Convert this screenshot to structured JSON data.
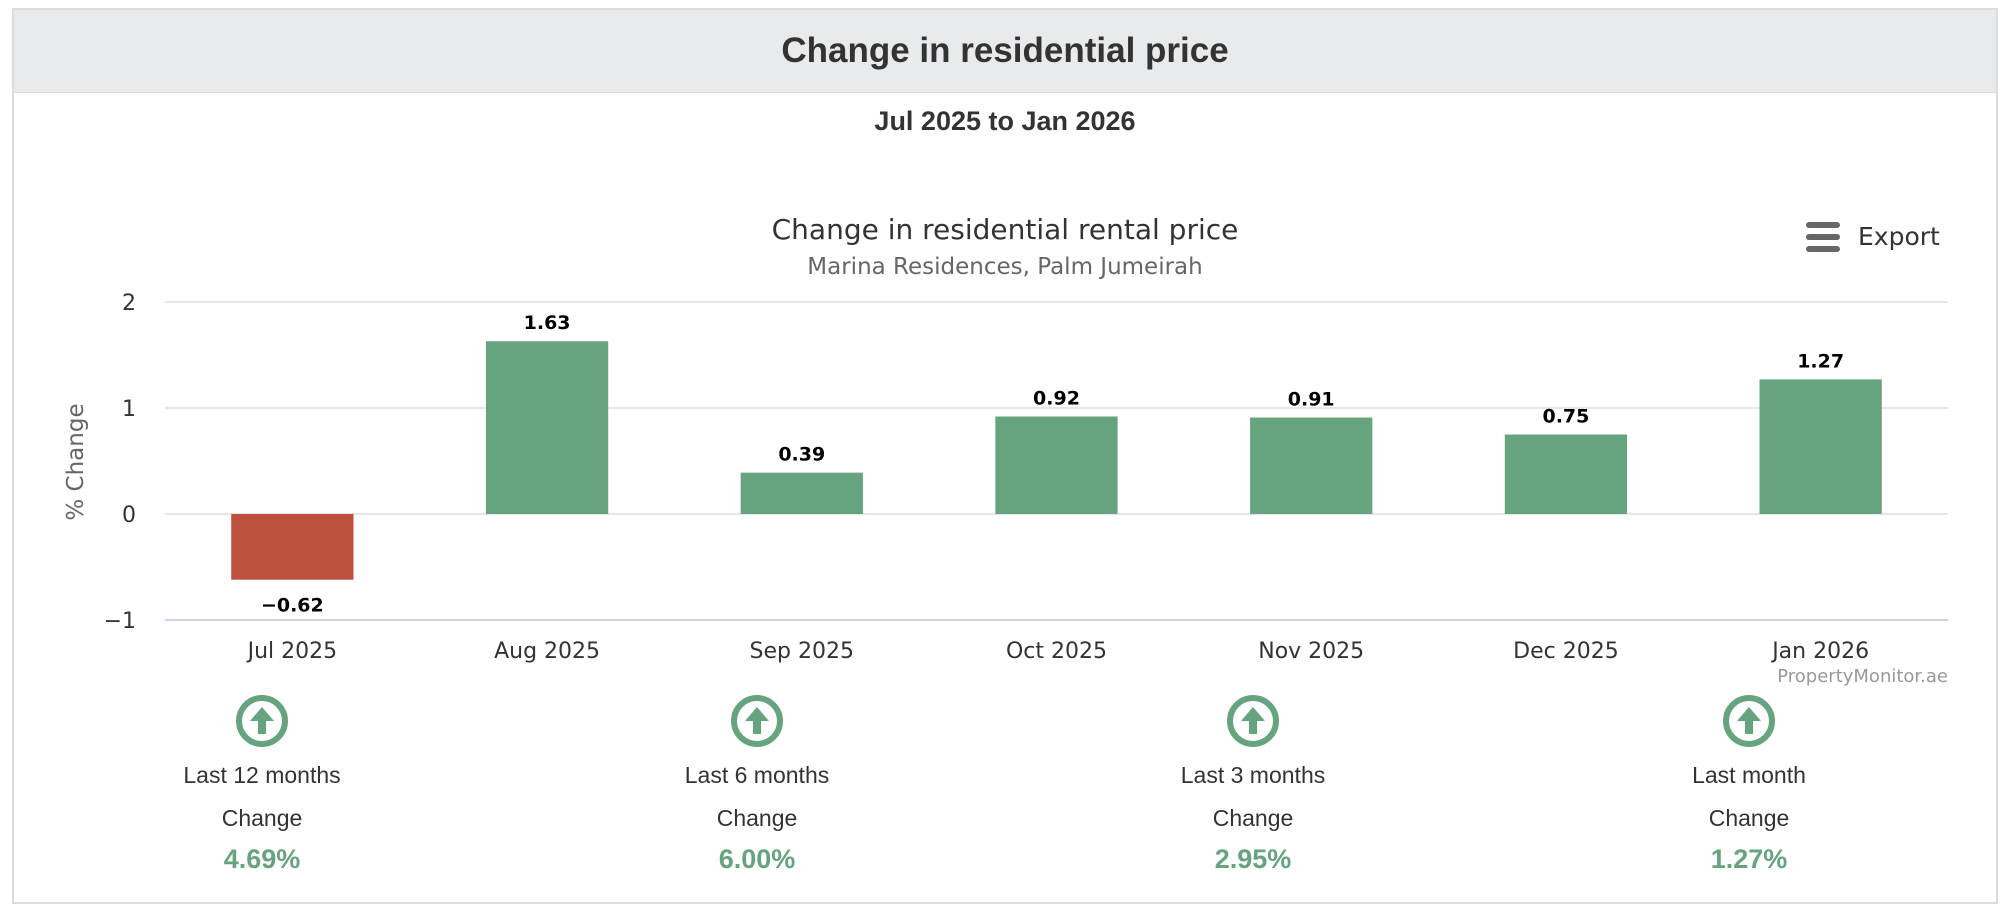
{
  "panel": {
    "title": "Change in residential price",
    "range": "Jul 2025 to Jan 2026"
  },
  "toolbar": {
    "export_label": "Export"
  },
  "chart_data": {
    "type": "bar",
    "title": "Change in residential rental price",
    "subtitle": "Marina Residences, Palm Jumeirah",
    "categories": [
      "Jul 2025",
      "Aug 2025",
      "Sep 2025",
      "Oct 2025",
      "Nov 2025",
      "Dec 2025",
      "Jan 2026"
    ],
    "values": [
      -0.62,
      1.63,
      0.39,
      0.92,
      0.91,
      0.75,
      1.27
    ],
    "xlabel": "",
    "ylabel": "% Change",
    "ylim": [
      -1,
      2
    ],
    "yticks": [
      -1,
      0,
      1,
      2
    ],
    "grid": true,
    "legend": "none",
    "credit": "PropertyMonitor.ae",
    "colors": {
      "positive": "#66a37f",
      "negative": "#bd4f3f",
      "grid": "#e6e6e6",
      "axis": "#ccd6eb"
    }
  },
  "stats": [
    {
      "period": "Last 12 months",
      "change_label": "Change",
      "value": "4.69%",
      "icon": "arrow-up-circle-icon"
    },
    {
      "period": "Last 6 months",
      "change_label": "Change",
      "value": "6.00%",
      "icon": "arrow-up-circle-icon"
    },
    {
      "period": "Last 3 months",
      "change_label": "Change",
      "value": "2.95%",
      "icon": "arrow-up-circle-icon"
    },
    {
      "period": "Last month",
      "change_label": "Change",
      "value": "1.27%",
      "icon": "arrow-up-circle-icon"
    }
  ]
}
